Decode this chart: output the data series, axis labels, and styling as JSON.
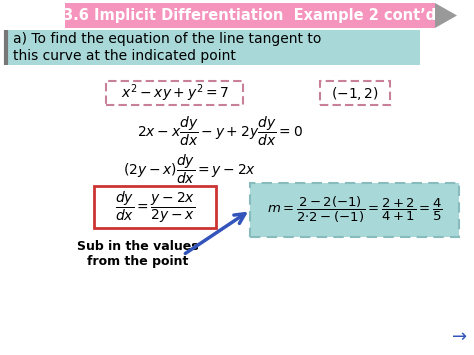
{
  "title": "3.6 Implicit Differentiation  Example 2 cont’d",
  "title_bg": "#F595BE",
  "title_fg": "#FFFFFF",
  "header_bg": "#A8D8D8",
  "bg_color": "#FFFFFF",
  "line_a": "a) To find the equation of the line tangent to",
  "line_b": "this curve at the indicated point",
  "eq1": "$x^2 - xy + y^2 = 7$",
  "eq1_box_color": "#C8809A",
  "point": "$(-1,2)$",
  "point_box_color": "#C8809A",
  "eq2": "$2x - x\\dfrac{dy}{dx} - y + 2y\\dfrac{dy}{dx} = 0$",
  "eq3": "$(2y - x)\\dfrac{dy}{dx} = y - 2x$",
  "eq4_lhs": "$\\dfrac{dy}{dx} = \\dfrac{y-2x}{2y-x}$",
  "eq4_box_color": "#CC3333",
  "eq5": "$m = \\dfrac{2-2(-1)}{2{\\cdot}2-(-1)} = \\dfrac{2+2}{4+1} = \\dfrac{4}{5}$",
  "eq5_bg": "#A8D8D8",
  "eq5_border": "#88BBBB",
  "arrow_color": "#3355BB",
  "sub_text1": "Sub in the values",
  "sub_text2": "from the point",
  "nav_arrow": "→",
  "tab_color": "#999999"
}
